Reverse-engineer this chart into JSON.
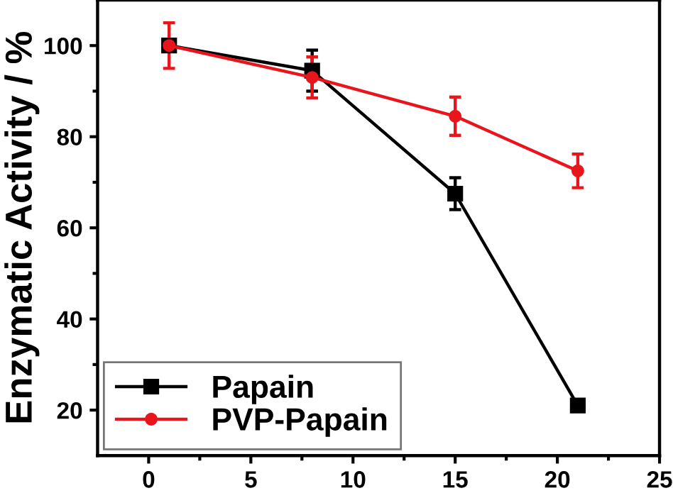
{
  "chart_data": {
    "type": "line",
    "ylabel": "Enzymatic Activity / %",
    "x": [
      1,
      8,
      15,
      21
    ],
    "series": [
      {
        "name": "Papain",
        "color": "#000000",
        "marker": "square",
        "values": [
          100,
          94.5,
          67.5,
          21
        ],
        "errors": [
          null,
          4.5,
          3.5,
          1
        ]
      },
      {
        "name": "PVP-Papain",
        "color": "#e8161c",
        "marker": "circle",
        "values": [
          100,
          93,
          84.5,
          72.5
        ],
        "errors": [
          5,
          4.5,
          4.2,
          3.7
        ]
      }
    ],
    "xlim": [
      -2.5,
      25
    ],
    "xticks": [
      0,
      5,
      10,
      15,
      20,
      25
    ],
    "ylim": [
      10,
      110
    ],
    "yticks": [
      20,
      40,
      60,
      80,
      100
    ],
    "legend": "bottom left",
    "grid": false,
    "line_style": "solid"
  }
}
